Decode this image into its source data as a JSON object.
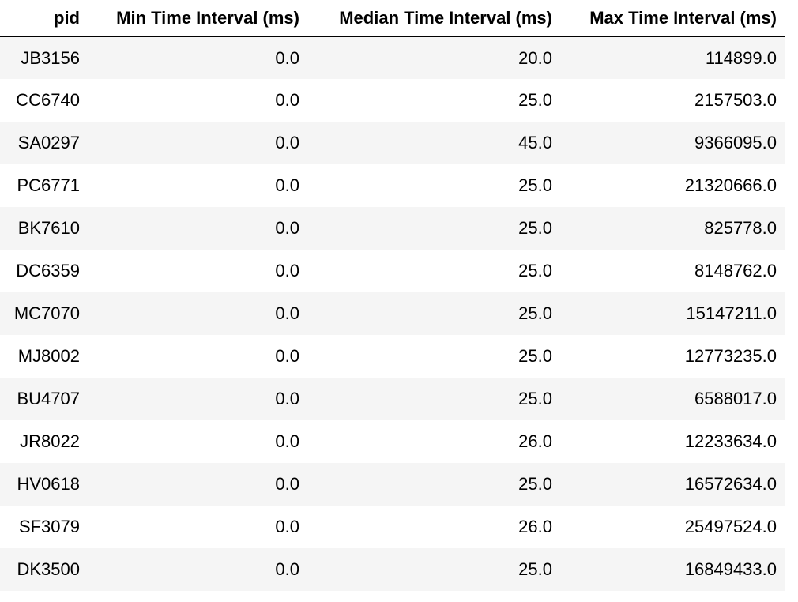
{
  "table": {
    "columns": [
      "pid",
      "Min Time Interval (ms)",
      "Median Time Interval (ms)",
      "Max Time Interval (ms)"
    ],
    "rows": [
      {
        "pid": "JB3156",
        "min": "0.0",
        "median": "20.0",
        "max": "114899.0"
      },
      {
        "pid": "CC6740",
        "min": "0.0",
        "median": "25.0",
        "max": "2157503.0"
      },
      {
        "pid": "SA0297",
        "min": "0.0",
        "median": "45.0",
        "max": "9366095.0"
      },
      {
        "pid": "PC6771",
        "min": "0.0",
        "median": "25.0",
        "max": "21320666.0"
      },
      {
        "pid": "BK7610",
        "min": "0.0",
        "median": "25.0",
        "max": "825778.0"
      },
      {
        "pid": "DC6359",
        "min": "0.0",
        "median": "25.0",
        "max": "8148762.0"
      },
      {
        "pid": "MC7070",
        "min": "0.0",
        "median": "25.0",
        "max": "15147211.0"
      },
      {
        "pid": "MJ8002",
        "min": "0.0",
        "median": "25.0",
        "max": "12773235.0"
      },
      {
        "pid": "BU4707",
        "min": "0.0",
        "median": "25.0",
        "max": "6588017.0"
      },
      {
        "pid": "JR8022",
        "min": "0.0",
        "median": "26.0",
        "max": "12233634.0"
      },
      {
        "pid": "HV0618",
        "min": "0.0",
        "median": "25.0",
        "max": "16572634.0"
      },
      {
        "pid": "SF3079",
        "min": "0.0",
        "median": "26.0",
        "max": "25497524.0"
      },
      {
        "pid": "DK3500",
        "min": "0.0",
        "median": "25.0",
        "max": "16849433.0"
      }
    ]
  },
  "colors": {
    "stripe": "#f5f5f5",
    "background": "#ffffff",
    "header_rule": "#000000"
  }
}
